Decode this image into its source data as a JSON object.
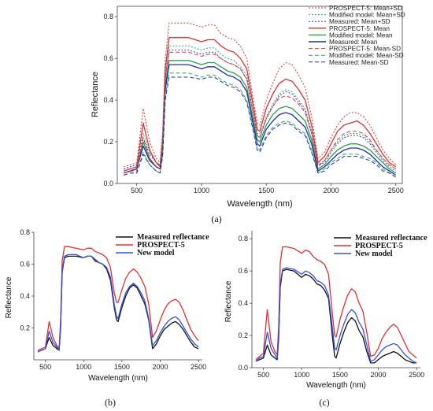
{
  "chart_data": [
    {
      "panel_label": "(a)",
      "type": "line",
      "xlabel": "Wavelength (nm)",
      "ylabel": "Reflectance",
      "xlim": [
        350,
        2550
      ],
      "ylim": [
        0,
        0.85
      ],
      "xticks": [
        500,
        1000,
        1500,
        2000,
        2500
      ],
      "yticks": [
        0.0,
        0.2,
        0.4,
        0.6,
        0.8
      ],
      "ytick_labels": [
        "0.0",
        "0.2",
        "0.4",
        "0.6",
        "0.8"
      ],
      "legend": "top-right",
      "x": [
        400,
        450,
        500,
        550,
        600,
        650,
        680,
        700,
        720,
        750,
        800,
        900,
        1000,
        1050,
        1100,
        1150,
        1200,
        1250,
        1300,
        1350,
        1400,
        1430,
        1450,
        1500,
        1550,
        1600,
        1650,
        1700,
        1750,
        1800,
        1850,
        1900,
        1950,
        2000,
        2050,
        2100,
        2150,
        2200,
        2250,
        2300,
        2350,
        2400,
        2450,
        2500
      ],
      "series": [
        {
          "name": "PROSPECT-5: Mean+SD",
          "color": "#e03030",
          "dash": "2,2",
          "values": [
            0.08,
            0.09,
            0.1,
            0.36,
            0.2,
            0.12,
            0.1,
            0.25,
            0.6,
            0.77,
            0.77,
            0.77,
            0.75,
            0.76,
            0.76,
            0.72,
            0.7,
            0.69,
            0.66,
            0.6,
            0.4,
            0.29,
            0.28,
            0.4,
            0.48,
            0.55,
            0.58,
            0.57,
            0.52,
            0.46,
            0.32,
            0.12,
            0.15,
            0.22,
            0.28,
            0.32,
            0.34,
            0.34,
            0.32,
            0.28,
            0.22,
            0.16,
            0.12,
            0.09
          ]
        },
        {
          "name": "Modified model: Mean+SD",
          "color": "#2aa080",
          "dash": "2,2",
          "values": [
            0.07,
            0.08,
            0.09,
            0.24,
            0.15,
            0.1,
            0.09,
            0.2,
            0.52,
            0.66,
            0.66,
            0.66,
            0.64,
            0.65,
            0.65,
            0.62,
            0.6,
            0.59,
            0.56,
            0.52,
            0.34,
            0.24,
            0.23,
            0.32,
            0.38,
            0.43,
            0.45,
            0.44,
            0.4,
            0.36,
            0.25,
            0.09,
            0.11,
            0.16,
            0.2,
            0.23,
            0.24,
            0.24,
            0.23,
            0.2,
            0.16,
            0.12,
            0.09,
            0.07
          ]
        },
        {
          "name": "Measured: Mean+SD",
          "color": "#4040b0",
          "dash": "2,2",
          "values": [
            0.07,
            0.08,
            0.09,
            0.22,
            0.14,
            0.1,
            0.09,
            0.19,
            0.5,
            0.64,
            0.64,
            0.64,
            0.62,
            0.63,
            0.63,
            0.6,
            0.58,
            0.57,
            0.55,
            0.5,
            0.33,
            0.23,
            0.22,
            0.31,
            0.37,
            0.42,
            0.44,
            0.43,
            0.39,
            0.35,
            0.24,
            0.09,
            0.1,
            0.15,
            0.19,
            0.22,
            0.23,
            0.23,
            0.22,
            0.19,
            0.15,
            0.11,
            0.08,
            0.06
          ]
        },
        {
          "name": "PROSPECT-5: Mean",
          "color": "#e03030",
          "dash": "",
          "values": [
            0.06,
            0.07,
            0.08,
            0.29,
            0.16,
            0.1,
            0.08,
            0.21,
            0.55,
            0.7,
            0.7,
            0.7,
            0.68,
            0.69,
            0.69,
            0.66,
            0.64,
            0.63,
            0.6,
            0.55,
            0.37,
            0.26,
            0.25,
            0.36,
            0.43,
            0.48,
            0.5,
            0.49,
            0.45,
            0.4,
            0.28,
            0.1,
            0.13,
            0.19,
            0.25,
            0.28,
            0.29,
            0.3,
            0.28,
            0.24,
            0.19,
            0.14,
            0.1,
            0.08
          ]
        },
        {
          "name": "Modified model: Mean",
          "color": "#2aa050",
          "dash": "",
          "values": [
            0.05,
            0.06,
            0.07,
            0.2,
            0.12,
            0.08,
            0.07,
            0.17,
            0.47,
            0.59,
            0.59,
            0.59,
            0.57,
            0.58,
            0.58,
            0.56,
            0.54,
            0.53,
            0.51,
            0.46,
            0.3,
            0.21,
            0.2,
            0.28,
            0.33,
            0.36,
            0.37,
            0.36,
            0.33,
            0.3,
            0.21,
            0.07,
            0.09,
            0.13,
            0.16,
            0.18,
            0.19,
            0.19,
            0.18,
            0.16,
            0.13,
            0.1,
            0.07,
            0.05
          ]
        },
        {
          "name": "Measured: Mean",
          "color": "#1f2fa8",
          "dash": "",
          "values": [
            0.05,
            0.06,
            0.07,
            0.18,
            0.11,
            0.08,
            0.07,
            0.16,
            0.45,
            0.57,
            0.57,
            0.57,
            0.55,
            0.56,
            0.56,
            0.54,
            0.52,
            0.51,
            0.49,
            0.44,
            0.28,
            0.19,
            0.18,
            0.26,
            0.3,
            0.33,
            0.34,
            0.33,
            0.3,
            0.27,
            0.19,
            0.06,
            0.08,
            0.11,
            0.14,
            0.16,
            0.17,
            0.17,
            0.16,
            0.14,
            0.11,
            0.08,
            0.06,
            0.04
          ]
        },
        {
          "name": "PROSPECT-5: Mean-SD",
          "color": "#e03030",
          "dash": "5,3",
          "values": [
            0.05,
            0.06,
            0.06,
            0.22,
            0.12,
            0.08,
            0.07,
            0.17,
            0.5,
            0.63,
            0.63,
            0.63,
            0.61,
            0.62,
            0.62,
            0.6,
            0.58,
            0.57,
            0.55,
            0.5,
            0.33,
            0.23,
            0.22,
            0.31,
            0.37,
            0.41,
            0.42,
            0.41,
            0.38,
            0.34,
            0.24,
            0.08,
            0.11,
            0.16,
            0.21,
            0.24,
            0.25,
            0.25,
            0.24,
            0.21,
            0.16,
            0.12,
            0.09,
            0.07
          ]
        },
        {
          "name": "Modified model: Mean-SD",
          "color": "#2aa080",
          "dash": "5,3",
          "values": [
            0.04,
            0.05,
            0.05,
            0.15,
            0.09,
            0.06,
            0.05,
            0.14,
            0.42,
            0.53,
            0.53,
            0.53,
            0.51,
            0.52,
            0.52,
            0.5,
            0.48,
            0.47,
            0.45,
            0.4,
            0.26,
            0.17,
            0.16,
            0.23,
            0.27,
            0.29,
            0.3,
            0.29,
            0.26,
            0.24,
            0.16,
            0.05,
            0.07,
            0.1,
            0.12,
            0.14,
            0.14,
            0.14,
            0.13,
            0.12,
            0.1,
            0.07,
            0.05,
            0.04
          ]
        },
        {
          "name": "Measured: Mean-SD",
          "color": "#2030a0",
          "dash": "5,3",
          "values": [
            0.04,
            0.05,
            0.05,
            0.14,
            0.09,
            0.06,
            0.05,
            0.13,
            0.4,
            0.51,
            0.51,
            0.51,
            0.5,
            0.51,
            0.51,
            0.49,
            0.47,
            0.46,
            0.44,
            0.39,
            0.25,
            0.16,
            0.15,
            0.22,
            0.26,
            0.28,
            0.29,
            0.28,
            0.25,
            0.23,
            0.15,
            0.05,
            0.06,
            0.09,
            0.11,
            0.13,
            0.13,
            0.13,
            0.12,
            0.11,
            0.09,
            0.06,
            0.05,
            0.03
          ]
        }
      ]
    },
    {
      "panel_label": "(b)",
      "type": "line",
      "xlabel": "Wavelength (nm)",
      "ylabel": "Reflectance",
      "xlim": [
        350,
        2550
      ],
      "ylim": [
        0,
        0.8
      ],
      "xticks": [
        500,
        1000,
        1500,
        2000,
        2500
      ],
      "yticks": [
        0.2,
        0.4,
        0.6,
        0.8
      ],
      "ytick_labels": [
        "0.2",
        "0.4",
        "0.6",
        "0.8"
      ],
      "legend": "top-right",
      "x": [
        400,
        450,
        500,
        550,
        600,
        650,
        680,
        700,
        720,
        750,
        800,
        900,
        1000,
        1050,
        1100,
        1150,
        1200,
        1250,
        1300,
        1350,
        1400,
        1430,
        1450,
        1500,
        1550,
        1600,
        1650,
        1700,
        1750,
        1800,
        1850,
        1900,
        1950,
        2000,
        2050,
        2100,
        2150,
        2200,
        2250,
        2300,
        2350,
        2400,
        2450,
        2500
      ],
      "series": [
        {
          "name": "Measured reflectance",
          "color": "#111111",
          "values": [
            0.05,
            0.06,
            0.07,
            0.14,
            0.09,
            0.07,
            0.06,
            0.2,
            0.55,
            0.64,
            0.65,
            0.65,
            0.64,
            0.65,
            0.65,
            0.62,
            0.61,
            0.6,
            0.57,
            0.5,
            0.33,
            0.25,
            0.24,
            0.33,
            0.4,
            0.45,
            0.47,
            0.45,
            0.4,
            0.35,
            0.25,
            0.07,
            0.1,
            0.15,
            0.19,
            0.21,
            0.23,
            0.24,
            0.22,
            0.19,
            0.15,
            0.11,
            0.08,
            0.07
          ]
        },
        {
          "name": "PROSPECT-5",
          "color": "#e03030",
          "values": [
            0.06,
            0.07,
            0.08,
            0.24,
            0.14,
            0.09,
            0.07,
            0.25,
            0.62,
            0.71,
            0.71,
            0.7,
            0.69,
            0.7,
            0.7,
            0.68,
            0.67,
            0.66,
            0.64,
            0.58,
            0.42,
            0.36,
            0.36,
            0.44,
            0.51,
            0.55,
            0.57,
            0.55,
            0.51,
            0.46,
            0.35,
            0.14,
            0.18,
            0.25,
            0.31,
            0.35,
            0.37,
            0.38,
            0.36,
            0.31,
            0.25,
            0.19,
            0.15,
            0.12
          ]
        },
        {
          "name": "New model",
          "color": "#3050e0",
          "values": [
            0.05,
            0.06,
            0.07,
            0.18,
            0.11,
            0.08,
            0.06,
            0.21,
            0.56,
            0.65,
            0.66,
            0.66,
            0.64,
            0.65,
            0.65,
            0.63,
            0.61,
            0.6,
            0.58,
            0.52,
            0.35,
            0.27,
            0.26,
            0.35,
            0.42,
            0.46,
            0.48,
            0.46,
            0.42,
            0.37,
            0.26,
            0.09,
            0.12,
            0.17,
            0.21,
            0.24,
            0.26,
            0.27,
            0.25,
            0.21,
            0.17,
            0.13,
            0.1,
            0.08
          ]
        }
      ]
    },
    {
      "panel_label": "(c)",
      "type": "line",
      "xlabel": "Wavelength (nm)",
      "ylabel": "Reflectance",
      "xlim": [
        350,
        2550
      ],
      "ylim": [
        0,
        0.85
      ],
      "xticks": [
        500,
        1000,
        1500,
        2000,
        2500
      ],
      "yticks": [
        0.0,
        0.2,
        0.4,
        0.6,
        0.8
      ],
      "ytick_labels": [
        "0.0",
        "0.2",
        "0.4",
        "0.6",
        "0.8"
      ],
      "legend": "top-right",
      "x": [
        400,
        450,
        500,
        550,
        600,
        650,
        680,
        700,
        720,
        750,
        800,
        900,
        1000,
        1050,
        1100,
        1150,
        1200,
        1250,
        1300,
        1350,
        1400,
        1430,
        1450,
        1500,
        1550,
        1600,
        1650,
        1700,
        1750,
        1800,
        1850,
        1900,
        1950,
        2000,
        2050,
        2100,
        2150,
        2200,
        2250,
        2300,
        2350,
        2400,
        2450,
        2500
      ],
      "series": [
        {
          "name": "Measured reflectance",
          "color": "#111111",
          "values": [
            0.04,
            0.05,
            0.06,
            0.14,
            0.08,
            0.06,
            0.05,
            0.18,
            0.5,
            0.6,
            0.61,
            0.6,
            0.56,
            0.58,
            0.57,
            0.55,
            0.52,
            0.51,
            0.48,
            0.43,
            0.2,
            0.07,
            0.06,
            0.15,
            0.22,
            0.28,
            0.31,
            0.29,
            0.23,
            0.19,
            0.1,
            0.03,
            0.03,
            0.05,
            0.07,
            0.08,
            0.09,
            0.1,
            0.09,
            0.07,
            0.05,
            0.04,
            0.03,
            0.03
          ]
        },
        {
          "name": "PROSPECT-5",
          "color": "#e03030",
          "values": [
            0.05,
            0.07,
            0.09,
            0.36,
            0.16,
            0.1,
            0.08,
            0.26,
            0.65,
            0.75,
            0.75,
            0.74,
            0.71,
            0.73,
            0.72,
            0.69,
            0.67,
            0.66,
            0.64,
            0.58,
            0.34,
            0.2,
            0.19,
            0.3,
            0.38,
            0.45,
            0.49,
            0.47,
            0.4,
            0.35,
            0.22,
            0.07,
            0.08,
            0.12,
            0.18,
            0.22,
            0.25,
            0.27,
            0.25,
            0.2,
            0.15,
            0.1,
            0.08,
            0.06
          ]
        },
        {
          "name": "New model",
          "color": "#3050e0",
          "values": [
            0.04,
            0.06,
            0.07,
            0.22,
            0.12,
            0.08,
            0.06,
            0.2,
            0.52,
            0.61,
            0.62,
            0.61,
            0.58,
            0.6,
            0.59,
            0.57,
            0.54,
            0.53,
            0.51,
            0.45,
            0.25,
            0.12,
            0.11,
            0.2,
            0.27,
            0.33,
            0.36,
            0.34,
            0.28,
            0.24,
            0.14,
            0.04,
            0.05,
            0.08,
            0.11,
            0.13,
            0.14,
            0.15,
            0.14,
            0.11,
            0.08,
            0.06,
            0.04,
            0.03
          ]
        }
      ]
    }
  ]
}
